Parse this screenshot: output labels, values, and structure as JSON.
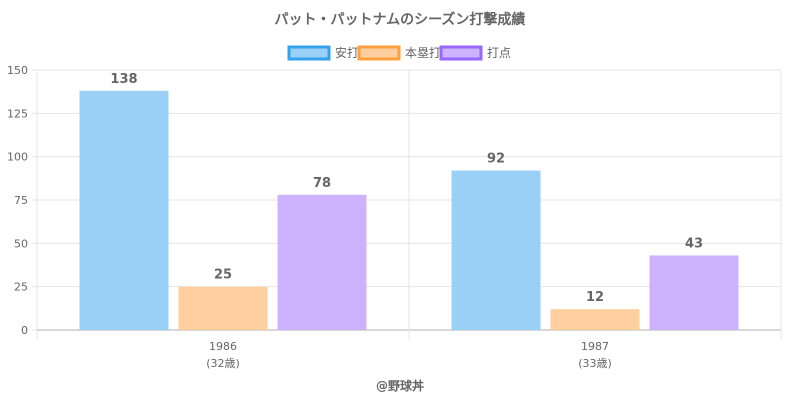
{
  "chart_data": {
    "type": "bar",
    "title": "パット・パットナムのシーズン打撃成績",
    "categories": [
      "1986",
      "1987"
    ],
    "category_sublabels": [
      "(32歳)",
      "(33歳)"
    ],
    "series": [
      {
        "name": "安打",
        "values": [
          138,
          92
        ],
        "color": "#9ad0f5",
        "border": "#36a2eb"
      },
      {
        "name": "本塁打",
        "values": [
          25,
          12
        ],
        "color": "#ffcf9f",
        "border": "#ff9f40"
      },
      {
        "name": "打点",
        "values": [
          78,
          43
        ],
        "color": "#ccb2ff",
        "border": "#9966ff"
      }
    ],
    "y_ticks": [
      "0",
      "25",
      "50",
      "75",
      "100",
      "125",
      "150"
    ],
    "ylim": [
      0,
      150
    ],
    "grid": true,
    "legend_position": "top-center",
    "credit": "@野球丼"
  }
}
